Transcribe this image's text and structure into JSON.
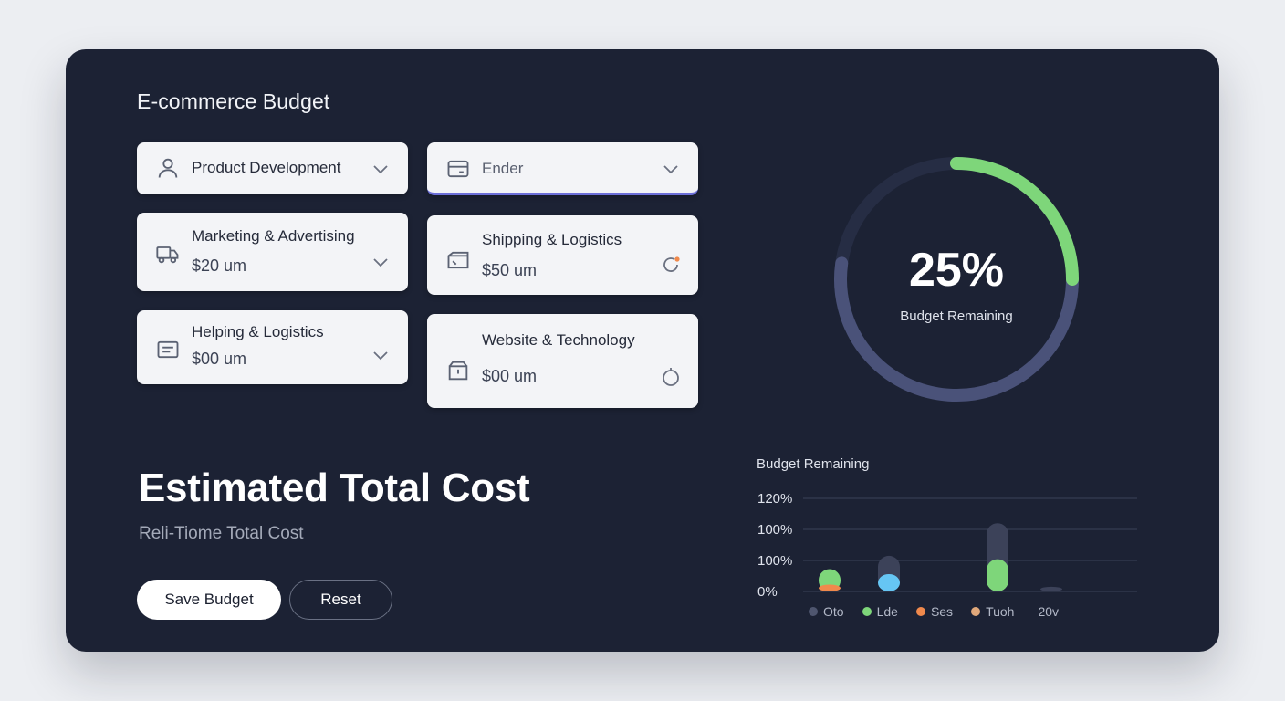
{
  "app": {
    "title": "E-commerce Budget"
  },
  "cards": [
    {
      "name": "Product Development",
      "icon": "user-icon",
      "trail_icon": "chevron-down-icon"
    },
    {
      "name": "Ender",
      "icon": "card-icon",
      "trail_icon": "chevron-down-icon"
    },
    {
      "name": "Marketing & Advertising",
      "amount": "$20 um",
      "icon": "truck-icon",
      "trail_icon": "chevron-down-icon"
    },
    {
      "name": "Shipping & Logistics",
      "amount": "$50 um",
      "icon": "ticket-icon",
      "trail_icon": "refresh-icon"
    },
    {
      "name": "Helping & Logistics",
      "amount": "$00 um",
      "icon": "receipt-icon",
      "trail_icon": "chevron-down-icon"
    },
    {
      "name": "Website & Technology",
      "amount": "$00 um",
      "icon": "package-icon",
      "trail_icon": "timer-icon"
    }
  ],
  "summary": {
    "title": "Estimated Total Cost",
    "subtitle": "Reli-Tiome Total Cost"
  },
  "buttons": {
    "save": "Save Budget",
    "reset": "Reset"
  },
  "gauge": {
    "value_text": "25%",
    "label": "Budget Remaining",
    "fraction": 0.25,
    "colors": {
      "track": "#4a5279",
      "progress": "#7ed67a"
    }
  },
  "chart_data": {
    "type": "bar",
    "title": "Budget Remaining",
    "y_tick_labels": [
      "120%",
      "100%",
      "100%",
      "0%"
    ],
    "legend": [
      {
        "label": "Oto",
        "color": "#4f566f"
      },
      {
        "label": "Lde",
        "color": "#7ed67a"
      },
      {
        "label": "Ses",
        "color": "#f0894c"
      },
      {
        "label": "Tuoh",
        "color": "#e0a87a"
      },
      {
        "label": "20v",
        "color": ""
      }
    ],
    "series": [
      {
        "values": [
          0.7,
          1.15,
          0.0,
          2.2,
          0.15
        ],
        "color": "#3c4259"
      },
      {
        "values": [
          0.72,
          0.0,
          0.0,
          1.04,
          0.0
        ],
        "color": "#7ed67a"
      },
      {
        "values": [
          0.0,
          0.56,
          0.0,
          0.0,
          0.0
        ],
        "color": "#66c6f4"
      },
      {
        "values": [
          0.22,
          0.0,
          0.0,
          0.0,
          0.0
        ],
        "color": "#f0894c"
      }
    ],
    "grid": true
  }
}
